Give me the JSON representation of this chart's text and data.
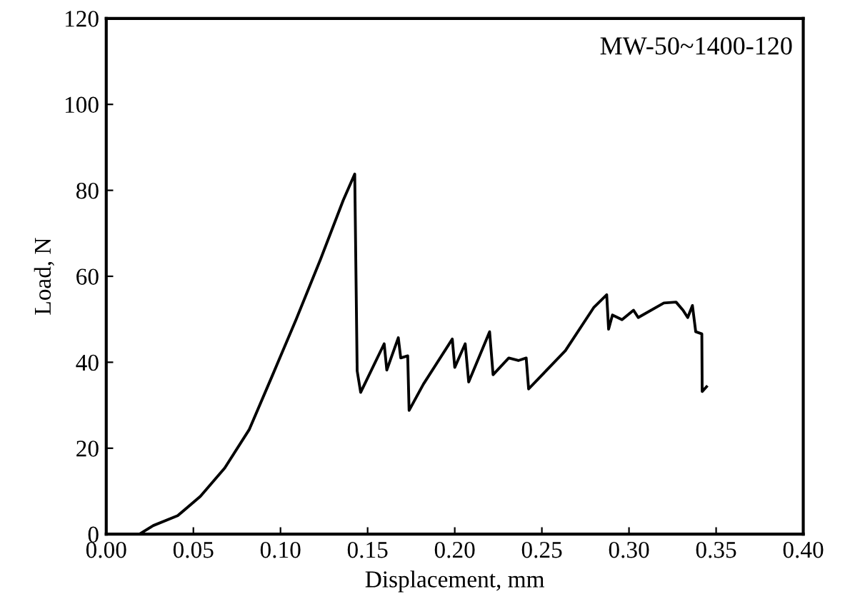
{
  "chart_data": {
    "type": "line",
    "xlabel": "Displacement, mm",
    "ylabel": "Load, N",
    "annotations": [
      "MW-50~1400-120"
    ],
    "xlim": [
      0.0,
      0.4
    ],
    "xticks": [
      {
        "value": 0,
        "label": "0.00"
      },
      0.05,
      {
        "value": 0.1,
        "label": "0.10"
      },
      0.15,
      {
        "value": 0.2,
        "label": "0.20"
      },
      0.25,
      {
        "value": 0.3,
        "label": "0.30"
      },
      0.35,
      {
        "value": 0.4,
        "label": "0.40"
      }
    ],
    "ylim": [
      0,
      120
    ],
    "yticks": [
      0,
      20,
      40,
      60,
      80,
      100,
      120
    ],
    "grid": false,
    "marker": "none",
    "line_style": "solid",
    "series": [
      {
        "color": "#000000",
        "x": [
          0.0,
          0.019,
          0.027,
          0.041,
          0.054,
          0.068,
          0.082,
          0.095,
          0.109,
          0.123,
          0.136,
          0.1426,
          0.144,
          0.146,
          0.1595,
          0.161,
          0.1676,
          0.169,
          0.173,
          0.1738,
          0.182,
          0.1986,
          0.2,
          0.206,
          0.208,
          0.22,
          0.222,
          0.231,
          0.2365,
          0.241,
          0.2424,
          0.2635,
          0.2797,
          0.2872,
          0.2883,
          0.2905,
          0.296,
          0.3026,
          0.3053,
          0.32,
          0.327,
          0.331,
          0.3337,
          0.3364,
          0.3383,
          0.3418,
          0.342,
          0.3445
        ],
        "values": [
          0,
          0,
          2,
          4.3,
          8.8,
          15.4,
          24.3,
          36.6,
          50,
          64,
          77.7,
          83.8,
          38,
          33,
          44.3,
          38.2,
          45.7,
          41,
          41.5,
          28.8,
          34.9,
          45.4,
          38.8,
          44.3,
          35.4,
          47.1,
          37.1,
          41,
          40.4,
          41,
          33.8,
          42.7,
          52.7,
          55.7,
          47.7,
          51,
          49.9,
          52.1,
          50.4,
          53.8,
          54,
          52.1,
          50.4,
          53.2,
          47.1,
          46.6,
          33.2,
          34.3
        ]
      }
    ]
  }
}
